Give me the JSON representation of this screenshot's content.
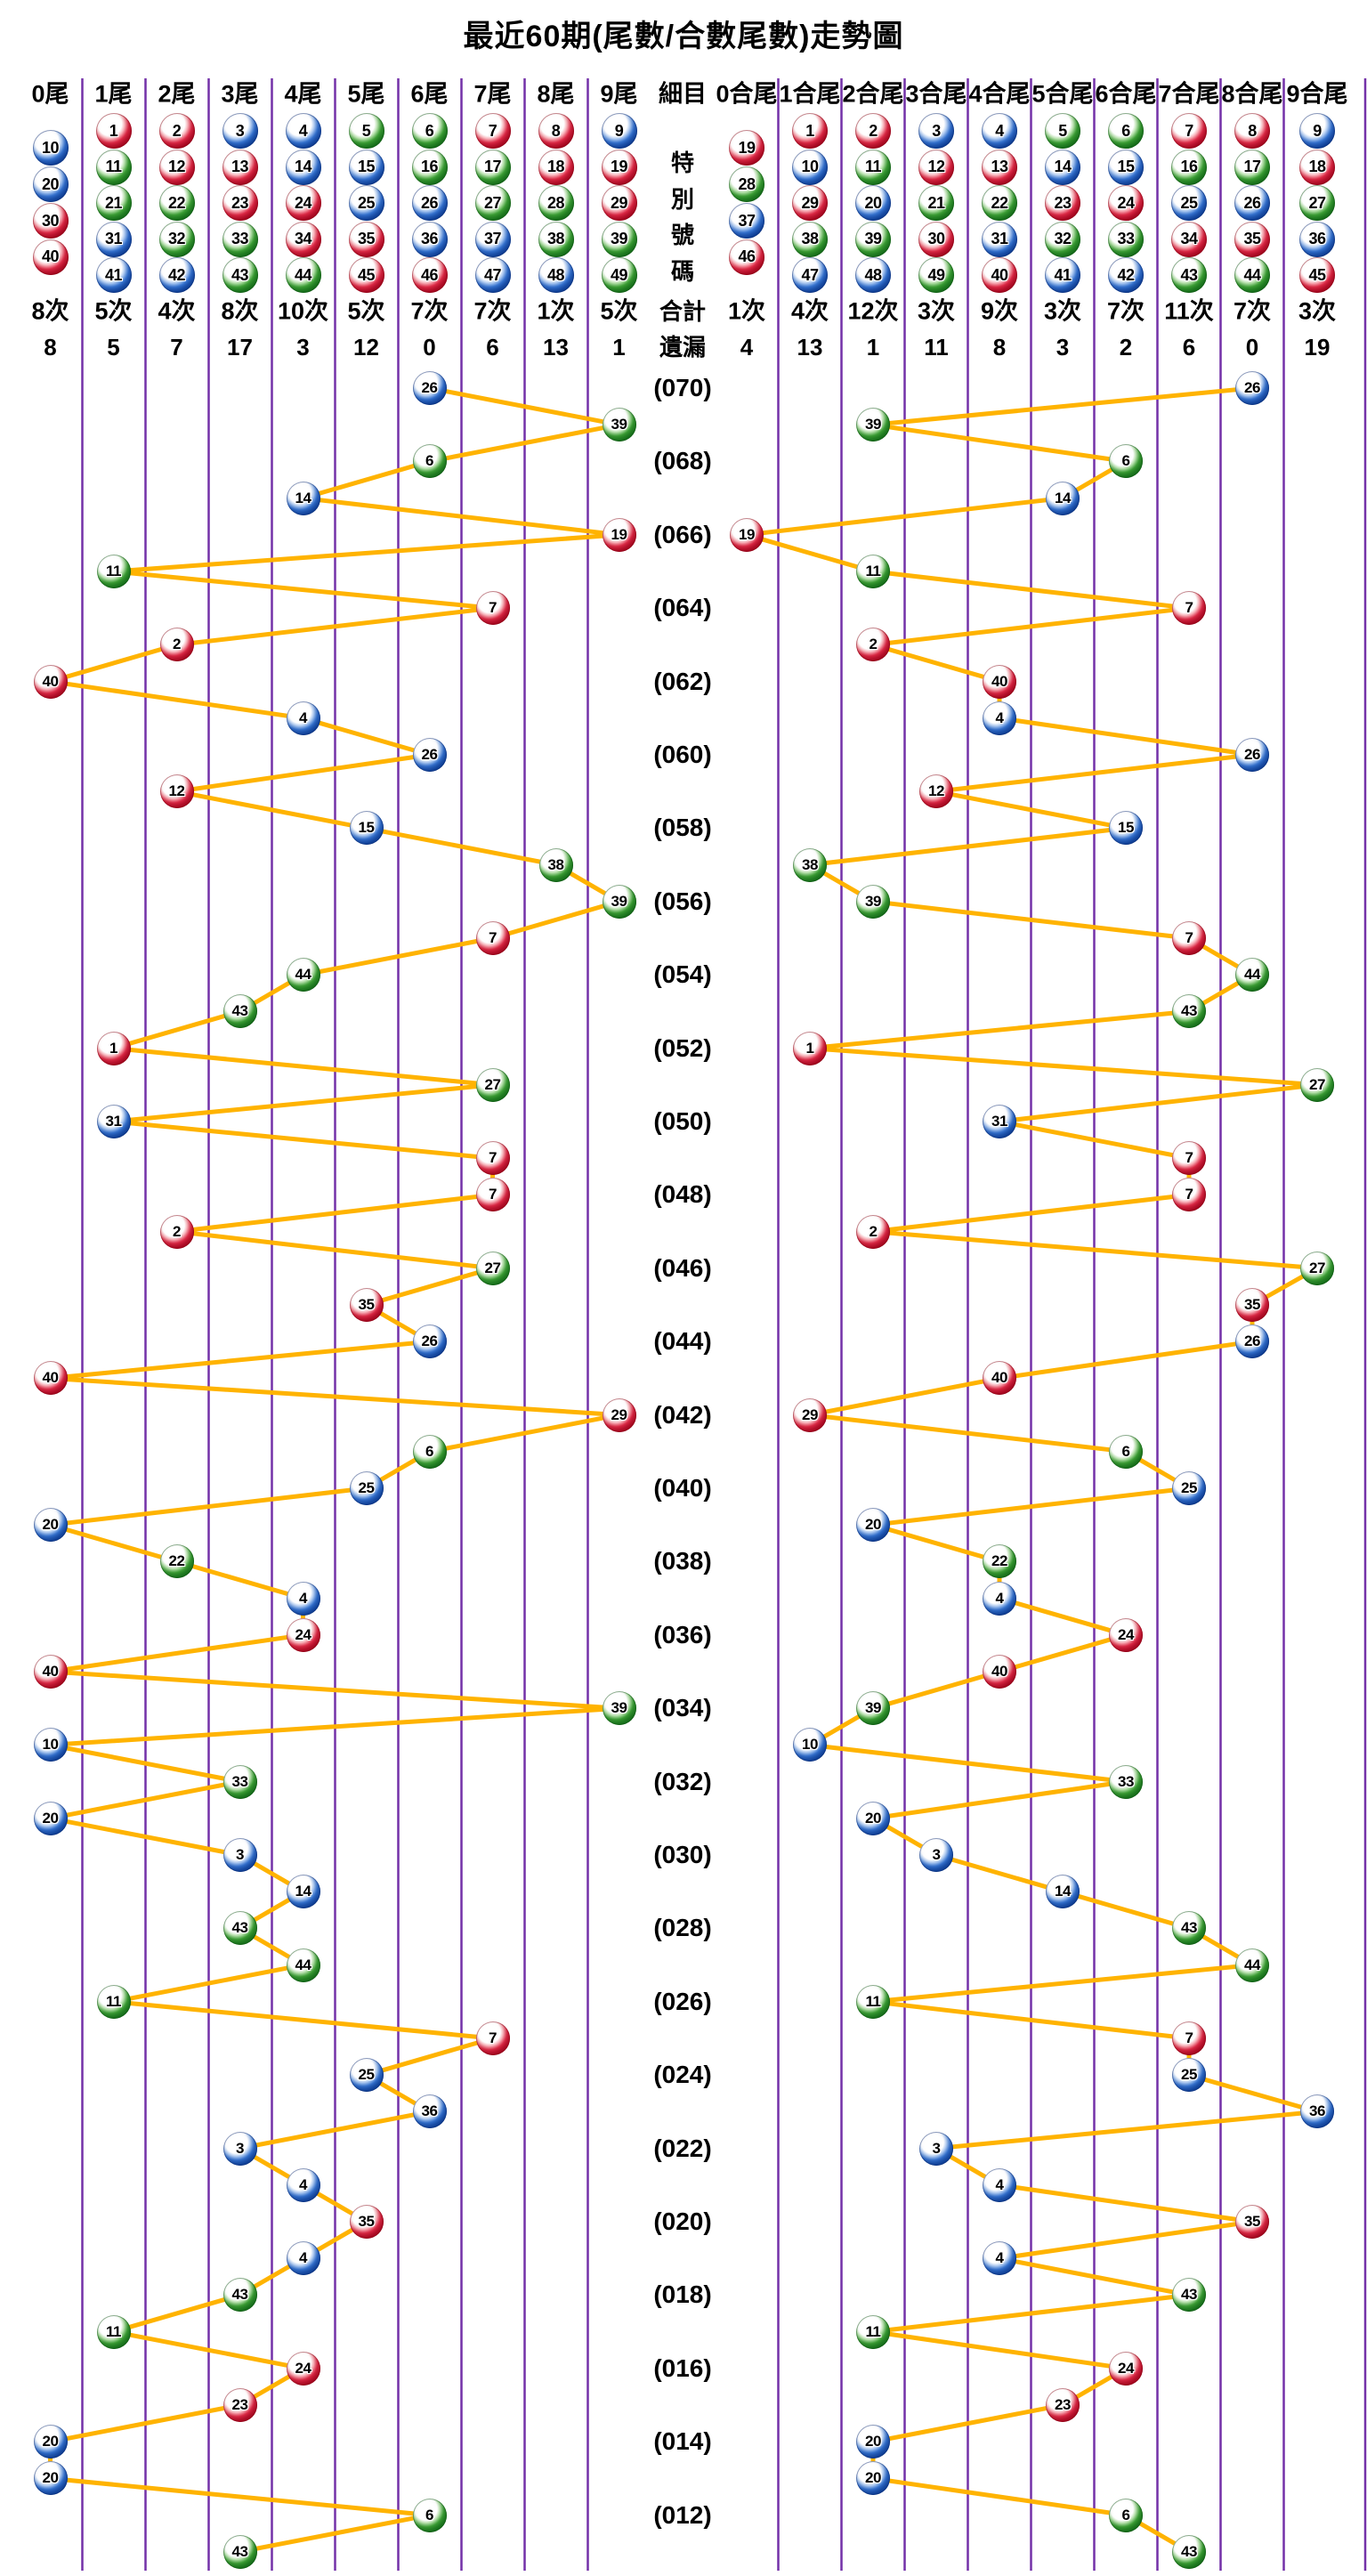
{
  "title": "最近60期(尾數/合數尾數)走勢圖",
  "header": {
    "tail_columns": [
      {
        "label": "0尾",
        "balls": [
          10,
          20,
          30,
          40
        ],
        "count": "8次",
        "miss": "8"
      },
      {
        "label": "1尾",
        "balls": [
          1,
          11,
          21,
          31,
          41
        ],
        "count": "5次",
        "miss": "5"
      },
      {
        "label": "2尾",
        "balls": [
          2,
          12,
          22,
          32,
          42
        ],
        "count": "4次",
        "miss": "7"
      },
      {
        "label": "3尾",
        "balls": [
          3,
          13,
          23,
          33,
          43
        ],
        "count": "8次",
        "miss": "17"
      },
      {
        "label": "4尾",
        "balls": [
          4,
          14,
          24,
          34,
          44
        ],
        "count": "10次",
        "miss": "3"
      },
      {
        "label": "5尾",
        "balls": [
          5,
          15,
          25,
          35,
          45
        ],
        "count": "5次",
        "miss": "12"
      },
      {
        "label": "6尾",
        "balls": [
          6,
          16,
          26,
          36,
          46
        ],
        "count": "7次",
        "miss": "0"
      },
      {
        "label": "7尾",
        "balls": [
          7,
          17,
          27,
          37,
          47
        ],
        "count": "7次",
        "miss": "6"
      },
      {
        "label": "8尾",
        "balls": [
          8,
          18,
          28,
          38,
          48
        ],
        "count": "1次",
        "miss": "13"
      },
      {
        "label": "9尾",
        "balls": [
          9,
          19,
          29,
          39,
          49
        ],
        "count": "5次",
        "miss": "1"
      }
    ],
    "detail": {
      "label": "細目",
      "special": "特別號碼",
      "total": "合計",
      "miss": "遺漏"
    },
    "sum_tail_columns": [
      {
        "label": "0合尾",
        "balls": [
          19,
          28,
          37,
          46
        ],
        "count": "1次",
        "miss": "4"
      },
      {
        "label": "1合尾",
        "balls": [
          1,
          10,
          29,
          38,
          47
        ],
        "count": "4次",
        "miss": "13"
      },
      {
        "label": "2合尾",
        "balls": [
          2,
          11,
          20,
          39,
          48
        ],
        "count": "12次",
        "miss": "1"
      },
      {
        "label": "3合尾",
        "balls": [
          3,
          12,
          21,
          30,
          49
        ],
        "count": "3次",
        "miss": "11"
      },
      {
        "label": "4合尾",
        "balls": [
          4,
          13,
          22,
          31,
          40
        ],
        "count": "9次",
        "miss": "8"
      },
      {
        "label": "5合尾",
        "balls": [
          5,
          14,
          23,
          32,
          41
        ],
        "count": "3次",
        "miss": "3"
      },
      {
        "label": "6合尾",
        "balls": [
          6,
          15,
          24,
          33,
          42
        ],
        "count": "7次",
        "miss": "2"
      },
      {
        "label": "7合尾",
        "balls": [
          7,
          16,
          25,
          34,
          43
        ],
        "count": "11次",
        "miss": "6"
      },
      {
        "label": "8合尾",
        "balls": [
          8,
          17,
          26,
          35,
          44
        ],
        "count": "7次",
        "miss": "0"
      },
      {
        "label": "9合尾",
        "balls": [
          9,
          18,
          27,
          36,
          45
        ],
        "count": "3次",
        "miss": "19"
      }
    ]
  },
  "chart_data": {
    "type": "scatter",
    "title": "最近60期(尾數/合數尾數)走勢圖",
    "left_axis": [
      "0尾",
      "1尾",
      "2尾",
      "3尾",
      "4尾",
      "5尾",
      "6尾",
      "7尾",
      "8尾",
      "9尾"
    ],
    "right_axis": [
      "0合尾",
      "1合尾",
      "2合尾",
      "3合尾",
      "4合尾",
      "5合尾",
      "6合尾",
      "7合尾",
      "8合尾",
      "9合尾"
    ],
    "period_labels": [
      "(070)",
      "(068)",
      "(066)",
      "(064)",
      "(062)",
      "(060)",
      "(058)",
      "(056)",
      "(054)",
      "(052)",
      "(050)",
      "(048)",
      "(046)",
      "(044)",
      "(042)",
      "(040)",
      "(038)",
      "(036)",
      "(034)",
      "(032)",
      "(030)",
      "(028)",
      "(026)",
      "(024)",
      "(022)",
      "(020)",
      "(018)",
      "(016)",
      "(014)",
      "(012)"
    ],
    "special_numbers": [
      26,
      39,
      6,
      14,
      19,
      11,
      7,
      2,
      40,
      4,
      26,
      12,
      15,
      38,
      39,
      7,
      44,
      43,
      1,
      27,
      31,
      7,
      7,
      2,
      27,
      35,
      26,
      40,
      29,
      6,
      25,
      20,
      22,
      4,
      24,
      40,
      39,
      10,
      33,
      20,
      3,
      14,
      43,
      44,
      11,
      7,
      25,
      36,
      3,
      4,
      35,
      4,
      43,
      11,
      24,
      23,
      20,
      20,
      6,
      43
    ]
  },
  "ball_color_groups": {
    "red": [
      1,
      2,
      7,
      8,
      12,
      13,
      18,
      19,
      23,
      24,
      29,
      30,
      34,
      35,
      40,
      45,
      46
    ],
    "blue": [
      3,
      4,
      9,
      10,
      14,
      15,
      20,
      25,
      26,
      31,
      36,
      37,
      41,
      42,
      47,
      48
    ],
    "green": [
      5,
      6,
      11,
      16,
      17,
      21,
      22,
      27,
      28,
      32,
      33,
      38,
      39,
      43,
      44,
      49
    ]
  },
  "colors": {
    "red": "#d41335",
    "blue": "#1f5ec4",
    "green": "#2a9428",
    "line": "#FFB300",
    "grid": "#7331A8",
    "text": "#000000"
  }
}
